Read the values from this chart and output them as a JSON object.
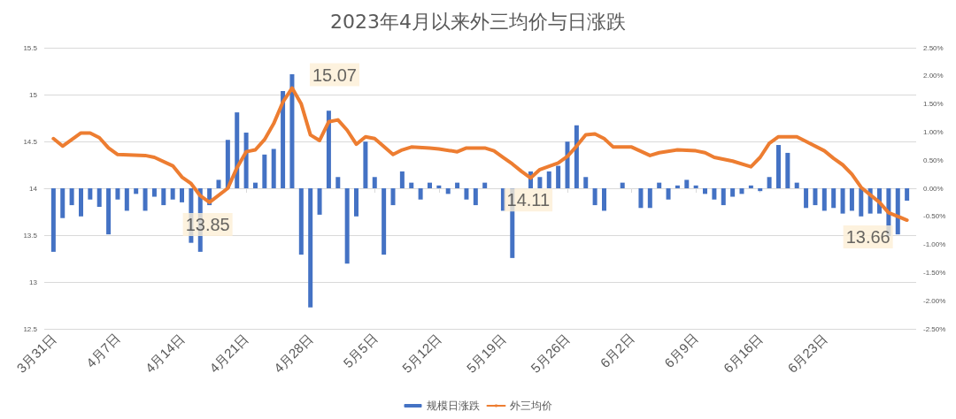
{
  "chart_data": {
    "type": "bar",
    "title": "2023年4月以来外三均价与日涨跌",
    "legend": "bottom",
    "grid": "y",
    "xlim": [
      "2023-03-30",
      "2023-07-03"
    ],
    "xticks": [
      {
        "value": "2023-03-31",
        "label": "3月31日"
      },
      {
        "value": "2023-04-07",
        "label": "4月7日"
      },
      {
        "value": "2023-04-14",
        "label": "4月14日"
      },
      {
        "value": "2023-04-21",
        "label": "4月21日"
      },
      {
        "value": "2023-04-28",
        "label": "4月28日"
      },
      {
        "value": "2023-05-05",
        "label": "5月5日"
      },
      {
        "value": "2023-05-12",
        "label": "5月12日"
      },
      {
        "value": "2023-05-19",
        "label": "5月19日"
      },
      {
        "value": "2023-05-26",
        "label": "5月26日"
      },
      {
        "value": "2023-06-02",
        "label": "6月2日"
      },
      {
        "value": "2023-06-09",
        "label": "6月9日"
      },
      {
        "value": "2023-06-16",
        "label": "6月16日"
      },
      {
        "value": "2023-06-23",
        "label": "6月23日"
      }
    ],
    "ylim": [
      12.5,
      15.5
    ],
    "yticks": [
      12.5,
      13,
      13.5,
      14,
      14.5,
      15,
      15.5
    ],
    "y2lim": [
      -2.5,
      2.5
    ],
    "y2ticks": [
      {
        "value": -2.5,
        "label": "-2.50%"
      },
      {
        "value": -2,
        "label": "-2.00%"
      },
      {
        "value": -1.5,
        "label": "-1.50%"
      },
      {
        "value": -1,
        "label": "-1.00%"
      },
      {
        "value": -0.5,
        "label": "-0.50%"
      },
      {
        "value": 0,
        "label": "0.00%"
      },
      {
        "value": 0.5,
        "label": "0.50%"
      },
      {
        "value": 1,
        "label": "1.00%"
      },
      {
        "value": 1.5,
        "label": "1.50%"
      },
      {
        "value": 2,
        "label": "2.00%"
      },
      {
        "value": 2.5,
        "label": "2.50%"
      }
    ],
    "series": [
      {
        "name": "规模日涨跌",
        "axis": "y2",
        "color": "#4472c4",
        "x": [
          "2023-03-31",
          "2023-04-01",
          "2023-04-02",
          "2023-04-03",
          "2023-04-04",
          "2023-04-05",
          "2023-04-06",
          "2023-04-07",
          "2023-04-08",
          "2023-04-09",
          "2023-04-10",
          "2023-04-11",
          "2023-04-12",
          "2023-04-13",
          "2023-04-14",
          "2023-04-15",
          "2023-04-16",
          "2023-04-17",
          "2023-04-18",
          "2023-04-19",
          "2023-04-20",
          "2023-04-21",
          "2023-04-22",
          "2023-04-23",
          "2023-04-24",
          "2023-04-25",
          "2023-04-26",
          "2023-04-27",
          "2023-04-28",
          "2023-04-29",
          "2023-04-30",
          "2023-05-01",
          "2023-05-02",
          "2023-05-03",
          "2023-05-04",
          "2023-05-05",
          "2023-05-06",
          "2023-05-07",
          "2023-05-08",
          "2023-05-09",
          "2023-05-10",
          "2023-05-11",
          "2023-05-12",
          "2023-05-13",
          "2023-05-14",
          "2023-05-15",
          "2023-05-16",
          "2023-05-17",
          "2023-05-18",
          "2023-05-19",
          "2023-05-20",
          "2023-05-21",
          "2023-05-22",
          "2023-05-23",
          "2023-05-24",
          "2023-05-25",
          "2023-05-26",
          "2023-05-27",
          "2023-05-28",
          "2023-05-29",
          "2023-05-30",
          "2023-05-31",
          "2023-06-01",
          "2023-06-02",
          "2023-06-03",
          "2023-06-04",
          "2023-06-05",
          "2023-06-06",
          "2023-06-07",
          "2023-06-08",
          "2023-06-09",
          "2023-06-10",
          "2023-06-11",
          "2023-06-12",
          "2023-06-13",
          "2023-06-14",
          "2023-06-15",
          "2023-06-16",
          "2023-06-17",
          "2023-06-18",
          "2023-06-19",
          "2023-06-20",
          "2023-06-21",
          "2023-06-22",
          "2023-06-23",
          "2023-06-24",
          "2023-06-25",
          "2023-06-26",
          "2023-06-27",
          "2023-06-28",
          "2023-06-29",
          "2023-06-30",
          "2023-07-01",
          "2023-07-02"
        ],
        "values": [
          -1.13,
          -0.53,
          -0.3,
          -0.5,
          -0.2,
          -0.33,
          -0.82,
          -0.2,
          -0.4,
          -0.1,
          -0.4,
          -0.15,
          -0.3,
          -0.2,
          -0.25,
          -0.97,
          -1.13,
          -0.3,
          0.15,
          0.86,
          1.35,
          0.99,
          0.1,
          0.6,
          0.7,
          1.73,
          2.03,
          -1.18,
          -2.12,
          -0.47,
          1.38,
          0.2,
          -1.34,
          -0.5,
          0.83,
          0.2,
          -1.18,
          -0.3,
          0.3,
          0.1,
          -0.2,
          0.1,
          0.05,
          -0.1,
          0.1,
          -0.2,
          -0.3,
          0.1,
          0,
          -0.4,
          -1.24,
          null,
          0.3,
          0.2,
          0.3,
          0.4,
          0.83,
          1.12,
          0.2,
          -0.3,
          -0.4,
          0,
          0.1,
          0,
          -0.35,
          -0.35,
          0.1,
          -0.2,
          0.05,
          0.15,
          0.05,
          -0.1,
          -0.2,
          -0.3,
          -0.15,
          -0.1,
          0.05,
          -0.05,
          0.2,
          0.77,
          0.63,
          0.1,
          -0.35,
          -0.3,
          -0.4,
          -0.35,
          -0.45,
          -0.4,
          -0.5,
          -0.45,
          -0.45,
          -0.85,
          -0.82,
          -0.22
        ]
      },
      {
        "name": "外三均价",
        "type": "line",
        "color": "#ed7d31",
        "x": [
          "2023-03-31",
          "2023-04-01",
          "2023-04-03",
          "2023-04-04",
          "2023-04-05",
          "2023-04-06",
          "2023-04-07",
          "2023-04-10",
          "2023-04-11",
          "2023-04-13",
          "2023-04-14",
          "2023-04-15",
          "2023-04-16",
          "2023-04-17",
          "2023-04-19",
          "2023-04-20",
          "2023-04-21",
          "2023-04-22",
          "2023-04-23",
          "2023-04-24",
          "2023-04-25",
          "2023-04-26",
          "2023-04-27",
          "2023-04-28",
          "2023-04-29",
          "2023-04-30",
          "2023-05-01",
          "2023-05-02",
          "2023-05-03",
          "2023-05-04",
          "2023-05-05",
          "2023-05-07",
          "2023-05-08",
          "2023-05-09",
          "2023-05-11",
          "2023-05-12",
          "2023-05-14",
          "2023-05-15",
          "2023-05-17",
          "2023-05-18",
          "2023-05-19",
          "2023-05-20",
          "2023-05-21",
          "2023-05-22",
          "2023-05-23",
          "2023-05-25",
          "2023-05-26",
          "2023-05-27",
          "2023-05-28",
          "2023-05-29",
          "2023-05-30",
          "2023-05-31",
          "2023-06-01",
          "2023-06-02",
          "2023-06-04",
          "2023-06-05",
          "2023-06-07",
          "2023-06-09",
          "2023-06-10",
          "2023-06-11",
          "2023-06-13",
          "2023-06-15",
          "2023-06-16",
          "2023-06-17",
          "2023-06-18",
          "2023-06-20",
          "2023-06-21",
          "2023-06-23",
          "2023-06-24",
          "2023-06-25",
          "2023-06-26",
          "2023-06-27",
          "2023-06-29",
          "2023-06-30",
          "2023-07-02"
        ],
        "values": [
          14.53,
          14.45,
          14.59,
          14.59,
          14.54,
          14.43,
          14.36,
          14.35,
          14.33,
          14.24,
          14.12,
          14.05,
          13.92,
          13.85,
          14.0,
          14.22,
          14.39,
          14.41,
          14.52,
          14.69,
          14.92,
          15.07,
          14.9,
          14.57,
          14.51,
          14.71,
          14.73,
          14.62,
          14.47,
          14.55,
          14.53,
          14.36,
          14.41,
          14.44,
          14.43,
          14.42,
          14.39,
          14.43,
          14.43,
          14.4,
          14.33,
          14.26,
          14.18,
          14.11,
          14.2,
          14.27,
          14.34,
          14.45,
          14.57,
          14.58,
          14.53,
          14.44,
          14.44,
          14.44,
          14.35,
          14.38,
          14.41,
          14.4,
          14.38,
          14.33,
          14.29,
          14.23,
          14.33,
          14.48,
          14.55,
          14.55,
          14.5,
          14.4,
          14.32,
          14.25,
          14.15,
          14.01,
          13.85,
          13.74,
          13.66
        ]
      }
    ],
    "annotations": [
      {
        "text": "15.07",
        "x": "2023-04-26",
        "y": 15.07
      },
      {
        "text": "13.85",
        "x": "2023-04-17",
        "y": 13.85
      },
      {
        "text": "14.11",
        "x": "2023-05-22",
        "y": 14.11
      },
      {
        "text": "13.66",
        "x": "2023-07-02",
        "y": 13.66
      }
    ]
  }
}
